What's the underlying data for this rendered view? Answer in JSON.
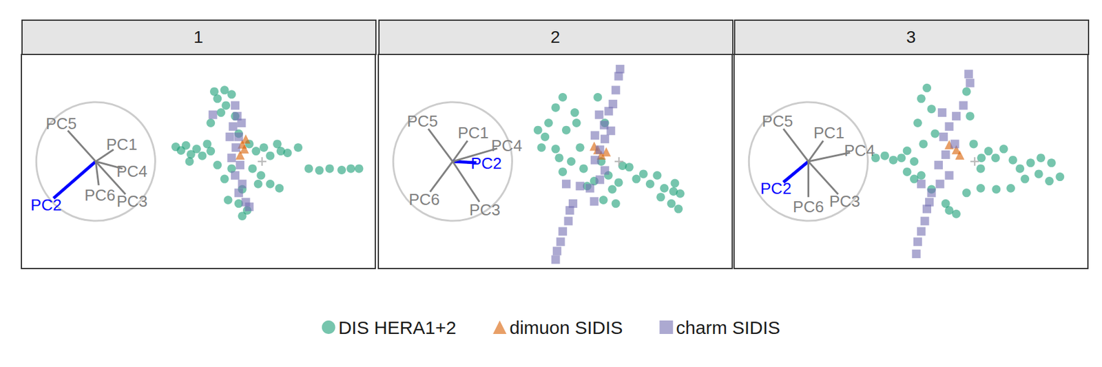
{
  "chart_data": [
    {
      "type": "scatter",
      "title": "1",
      "xlim": [
        0,
        100
      ],
      "ylim": [
        0,
        60
      ],
      "tick_labels": false,
      "grid": false,
      "legend": "bottom",
      "origin": [
        68,
        30
      ],
      "loadings": [
        {
          "name": "PC1",
          "x": 0.3,
          "y": 0.2,
          "color": "#808080"
        },
        {
          "name": "PC2",
          "x": -0.71,
          "y": -0.62,
          "color": "#0000ff"
        },
        {
          "name": "PC3",
          "x": 0.5,
          "y": -0.55,
          "color": "#808080"
        },
        {
          "name": "PC4",
          "x": 0.45,
          "y": -0.12,
          "color": "#808080"
        },
        {
          "name": "PC5",
          "x": -0.47,
          "y": 0.52,
          "color": "#808080"
        },
        {
          "name": "PC6",
          "x": 0.05,
          "y": -0.4,
          "color": "#808080"
        }
      ],
      "series": [
        {
          "name": "DIS HERA1+2",
          "color": "#1b9e77",
          "marker": "circle",
          "x": [
            43.6,
            45.1,
            46.5,
            47.9,
            49.5,
            51.1,
            52.5,
            53.5,
            54.5,
            55.4,
            57.4,
            57.8,
            59.4,
            56.4,
            60.4,
            53.5,
            61.4,
            64.4,
            66.3,
            68.5,
            70.3,
            72.3,
            73.3,
            75.2,
            78.2,
            65.3,
            67.7,
            70.3,
            72.9,
            66.9,
            81.2,
            84.2,
            87.1,
            90.5,
            93.1,
            95.4,
            59.4,
            57.4,
            62.4,
            61.4,
            62.4,
            58.4,
            63.8,
            47.5,
            55.4
          ],
          "y": [
            34.1,
            33.1,
            34.5,
            32.0,
            33.5,
            31.6,
            34.9,
            32.9,
            49.6,
            47.6,
            50.0,
            45.7,
            48.8,
            43.7,
            42.7,
            40.8,
            37.8,
            34.9,
            32.9,
            33.9,
            31.6,
            34.9,
            32.9,
            32.4,
            33.9,
            28.0,
            26.1,
            23.7,
            22.5,
            23.7,
            28.0,
            27.5,
            28.0,
            27.6,
            28.0,
            28.0,
            28.0,
            25.1,
            22.2,
            18.2,
            14.7,
            19.2,
            16.3,
            30.0,
            29.0
          ]
        },
        {
          "name": "dimuon SIDIS",
          "color": "#d95f02",
          "marker": "triangle",
          "x": [
            62.4,
            63.0,
            61.8,
            63.4
          ],
          "y": [
            34.9,
            33.5,
            31.8,
            36.3
          ]
        },
        {
          "name": "charm SIDIS",
          "color": "#7570b3",
          "marker": "square",
          "x": [
            54.1,
            60.4,
            61.0,
            59.8,
            61.4,
            60.6,
            59.4,
            61.8,
            60.4,
            62.4,
            61.4,
            63.4,
            64.4,
            58.9,
            62.2
          ],
          "y": [
            43.1,
            45.7,
            42.7,
            39.8,
            36.9,
            33.9,
            31.0,
            29.0,
            26.1,
            23.7,
            21.2,
            18.6,
            17.3,
            36.9,
            40.8
          ]
        }
      ]
    },
    {
      "type": "scatter",
      "title": "2",
      "xlim": [
        0,
        100
      ],
      "ylim": [
        0,
        60
      ],
      "tick_labels": false,
      "grid": false,
      "legend": "bottom",
      "origin": [
        68,
        30
      ],
      "loadings": [
        {
          "name": "PC1",
          "x": 0.25,
          "y": 0.35,
          "color": "#808080"
        },
        {
          "name": "PC2",
          "x": 0.4,
          "y": -0.02,
          "color": "#0000ff"
        },
        {
          "name": "PC3",
          "x": 0.45,
          "y": -0.68,
          "color": "#808080"
        },
        {
          "name": "PC4",
          "x": 0.75,
          "y": 0.22,
          "color": "#808080"
        },
        {
          "name": "PC5",
          "x": -0.41,
          "y": 0.55,
          "color": "#808080"
        },
        {
          "name": "PC6",
          "x": -0.38,
          "y": -0.51,
          "color": "#808080"
        }
      ],
      "series": [
        {
          "name": "DIS HERA1+2",
          "color": "#1b9e77",
          "marker": "circle",
          "x": [
            45.1,
            47.1,
            48.1,
            50.1,
            52.1,
            53.1,
            54.5,
            56.0,
            57.0,
            58.0,
            51.1,
            55.5,
            62.0,
            64.0,
            63.0,
            65.0,
            66.1,
            63.6,
            67.1,
            67.9,
            69.0,
            70.9,
            72.9,
            74.9,
            76.8,
            78.8,
            80.8,
            83.4,
            85.3,
            82.8,
            84.8,
            83.8,
            79.8,
            59.0,
            61.0,
            52.1,
            46.1,
            50.1
          ],
          "y": [
            38.8,
            36.9,
            40.8,
            33.5,
            48.0,
            38.8,
            30.0,
            40.8,
            33.9,
            28.0,
            31.0,
            43.7,
            48.0,
            40.8,
            30.0,
            26.1,
            22.2,
            19.2,
            18.2,
            24.1,
            28.8,
            28.4,
            25.1,
            26.5,
            23.7,
            26.1,
            22.5,
            21.6,
            21.0,
            18.2,
            16.7,
            23.9,
            20.0,
            23.1,
            24.5,
            27.1,
            33.9,
            45.1
          ]
        },
        {
          "name": "dimuon SIDIS",
          "color": "#d95f02",
          "marker": "triangle",
          "x": [
            62.0,
            63.0,
            61.0,
            64.4
          ],
          "y": [
            33.3,
            31.8,
            34.3,
            32.7
          ]
        },
        {
          "name": "charm SIDIS",
          "color": "#7570b3",
          "marker": "square",
          "x": [
            68.3,
            67.9,
            67.1,
            66.3,
            65.1,
            62.4,
            63.8,
            61.2,
            64.0,
            62.6,
            61.2,
            64.0,
            62.6,
            59.8,
            57.0,
            61.0,
            55.0,
            54.1,
            53.7,
            52.1,
            51.5,
            50.5,
            50.1,
            53.1,
            65.7
          ],
          "y": [
            55.9,
            53.9,
            50.0,
            46.1,
            44.1,
            43.1,
            40.2,
            37.3,
            36.3,
            33.3,
            30.4,
            27.5,
            24.9,
            22.5,
            23.1,
            18.8,
            18.2,
            16.3,
            13.3,
            10.4,
            7.5,
            4.9,
            2.5,
            23.7,
            38.6
          ]
        }
      ]
    },
    {
      "type": "scatter",
      "title": "3",
      "xlim": [
        0,
        100
      ],
      "ylim": [
        0,
        60
      ],
      "tick_labels": false,
      "grid": false,
      "legend": "bottom",
      "origin": [
        68,
        30
      ],
      "loadings": [
        {
          "name": "PC1",
          "x": 0.25,
          "y": 0.35,
          "color": "#808080"
        },
        {
          "name": "PC2",
          "x": -0.42,
          "y": -0.35,
          "color": "#0000ff"
        },
        {
          "name": "PC3",
          "x": 0.5,
          "y": -0.55,
          "color": "#808080"
        },
        {
          "name": "PC4",
          "x": 0.7,
          "y": 0.15,
          "color": "#808080"
        },
        {
          "name": "PC5",
          "x": -0.42,
          "y": 0.55,
          "color": "#808080"
        },
        {
          "name": "PC6",
          "x": 0.0,
          "y": -0.6,
          "color": "#808080"
        }
      ],
      "series": [
        {
          "name": "DIS HERA1+2",
          "color": "#1b9e77",
          "marker": "circle",
          "x": [
            40.0,
            42.6,
            45.0,
            47.3,
            48.9,
            50.9,
            52.9,
            54.5,
            55.8,
            51.9,
            56.8,
            53.5,
            65.7,
            66.7,
            67.7,
            69.9,
            71.9,
            73.9,
            76.2,
            78.8,
            80.8,
            83.8,
            86.7,
            89.7,
            92.1,
            89.1,
            86.1,
            82.2,
            78.2,
            74.1,
            69.7,
            65.7,
            69.7,
            50.9,
            55.8,
            59.8,
            62.8,
            60.8,
            52.9,
            48.9
          ],
          "y": [
            31.0,
            31.6,
            30.4,
            31.0,
            33.0,
            30.0,
            47.6,
            50.6,
            44.7,
            40.8,
            37.8,
            34.9,
            49.6,
            42.7,
            34.9,
            31.0,
            32.9,
            31.0,
            33.5,
            30.4,
            28.0,
            29.6,
            31.0,
            29.6,
            25.7,
            24.5,
            26.5,
            25.1,
            22.5,
            22.2,
            22.5,
            21.2,
            28.0,
            25.1,
            22.2,
            18.2,
            15.3,
            16.3,
            26.1,
            27.1
          ]
        },
        {
          "name": "dimuon SIDIS",
          "color": "#d95f02",
          "marker": "triangle",
          "x": [
            62.8,
            63.8,
            60.8
          ],
          "y": [
            33.3,
            31.8,
            34.7
          ]
        },
        {
          "name": "charm SIDIS",
          "color": "#7570b3",
          "marker": "square",
          "x": [
            66.3,
            66.7,
            64.8,
            62.8,
            60.8,
            59.2,
            62.4,
            59.8,
            57.8,
            60.8,
            58.2,
            55.8,
            55.2,
            54.5,
            53.9,
            52.9,
            51.9,
            51.5,
            58.8,
            52.9
          ],
          "y": [
            54.5,
            52.0,
            45.7,
            42.7,
            39.8,
            36.9,
            34.9,
            31.9,
            29.0,
            26.1,
            23.7,
            21.2,
            18.6,
            16.7,
            13.3,
            10.4,
            7.5,
            4.1,
            43.7,
            23.7
          ]
        }
      ]
    }
  ]
}
